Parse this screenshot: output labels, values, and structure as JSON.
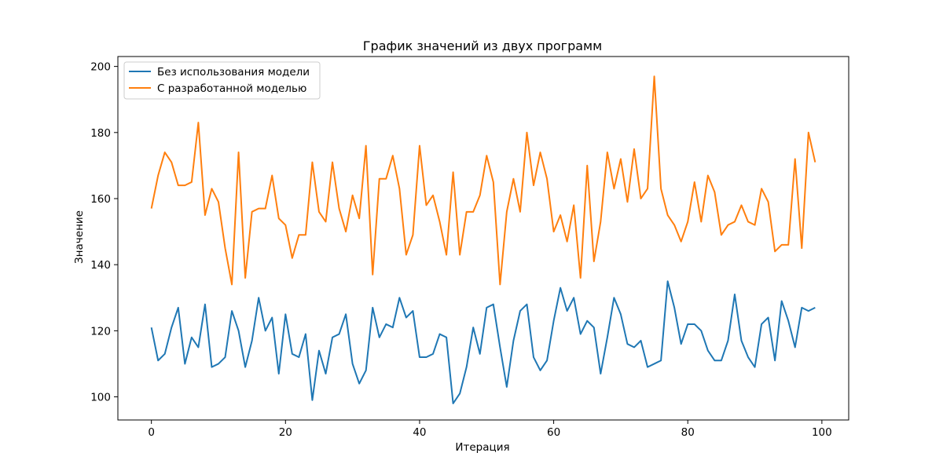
{
  "chart_data": {
    "type": "line",
    "title": "График значений из двух программ",
    "xlabel": "Итерация",
    "ylabel": "Значение",
    "xlim": [
      -5.0,
      104.0
    ],
    "ylim": [
      93.0,
      203.0
    ],
    "xticks": [
      0,
      20,
      40,
      60,
      80,
      100
    ],
    "yticks": [
      100,
      120,
      140,
      160,
      180,
      200
    ],
    "grid": false,
    "legend_position": "top-left",
    "series": [
      {
        "name": "Без использования модели",
        "color": "#1f77b4",
        "values": [
          121,
          111,
          113,
          121,
          127,
          110,
          118,
          115,
          128,
          109,
          110,
          112,
          126,
          120,
          109,
          117,
          130,
          120,
          124,
          107,
          125,
          113,
          112,
          119,
          99,
          114,
          107,
          118,
          119,
          125,
          110,
          104,
          108,
          127,
          118,
          122,
          121,
          130,
          124,
          126,
          112,
          112,
          113,
          119,
          118,
          98,
          101,
          109,
          121,
          113,
          127,
          128,
          115,
          103,
          117,
          126,
          128,
          112,
          108,
          111,
          123,
          133,
          126,
          130,
          119,
          123,
          121,
          107,
          118,
          130,
          125,
          116,
          115,
          117,
          109,
          110,
          111,
          135,
          127,
          116,
          122,
          122,
          120,
          114,
          111,
          111,
          117,
          131,
          117,
          112,
          109,
          122,
          124,
          111,
          129,
          123,
          115,
          127,
          126,
          127
        ]
      },
      {
        "name": "С разработанной моделью",
        "color": "#ff7f0e",
        "values": [
          157,
          167,
          174,
          171,
          164,
          164,
          165,
          183,
          155,
          163,
          159,
          145,
          134,
          174,
          136,
          156,
          157,
          157,
          167,
          154,
          152,
          142,
          149,
          149,
          171,
          156,
          153,
          171,
          157,
          150,
          161,
          154,
          176,
          137,
          166,
          166,
          173,
          163,
          143,
          149,
          176,
          158,
          161,
          153,
          143,
          168,
          143,
          156,
          156,
          161,
          173,
          165,
          134,
          156,
          166,
          156,
          180,
          164,
          174,
          166,
          150,
          155,
          147,
          158,
          136,
          170,
          141,
          153,
          174,
          163,
          172,
          159,
          175,
          160,
          163,
          197,
          163,
          155,
          152,
          147,
          153,
          165,
          153,
          167,
          162,
          149,
          152,
          153,
          158,
          153,
          152,
          163,
          159,
          144,
          146,
          146,
          172,
          145,
          180,
          171
        ]
      }
    ]
  }
}
